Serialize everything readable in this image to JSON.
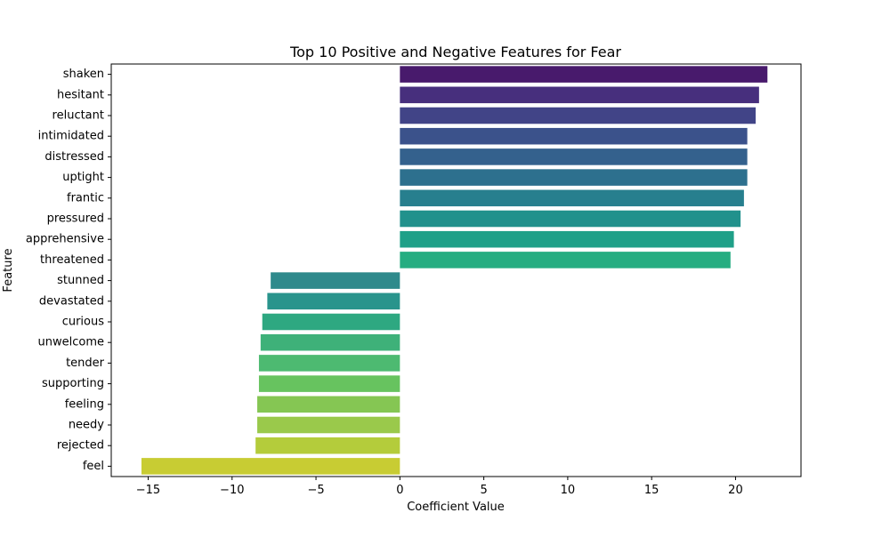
{
  "chart_data": {
    "type": "bar",
    "orientation": "horizontal",
    "title": "Top 10 Positive and Negative Features for Fear",
    "xlabel": "Coefficient Value",
    "ylabel": "Feature",
    "xlim": [
      -17.2,
      23.9
    ],
    "xticks": [
      -15,
      -10,
      -5,
      0,
      5,
      10,
      15,
      20
    ],
    "xtick_labels": [
      "−15",
      "−10",
      "−5",
      "0",
      "5",
      "10",
      "15",
      "20"
    ],
    "grid": false,
    "legend": "none",
    "categories": [
      "shaken",
      "hesitant",
      "reluctant",
      "intimidated",
      "distressed",
      "uptight",
      "frantic",
      "pressured",
      "apprehensive",
      "threatened",
      "stunned",
      "devastated",
      "curious",
      "unwelcome",
      "tender",
      "supporting",
      "feeling",
      "needy",
      "rejected",
      "feel"
    ],
    "values": [
      21.9,
      21.4,
      21.2,
      20.7,
      20.7,
      20.7,
      20.5,
      20.3,
      19.9,
      19.7,
      -7.7,
      -7.9,
      -8.2,
      -8.3,
      -8.4,
      -8.4,
      -8.5,
      -8.5,
      -8.6,
      -15.4
    ],
    "colors": [
      "#481a6c",
      "#472f7d",
      "#414487",
      "#3b528b",
      "#34618d",
      "#2d708e",
      "#277f8e",
      "#21918c",
      "#1fa088",
      "#26ad81",
      "#2f8a8c",
      "#29948c",
      "#2ea881",
      "#3eb179",
      "#4dba71",
      "#67c35f",
      "#85c653",
      "#9ac94b",
      "#b4cc3b",
      "#c8cc33"
    ]
  }
}
